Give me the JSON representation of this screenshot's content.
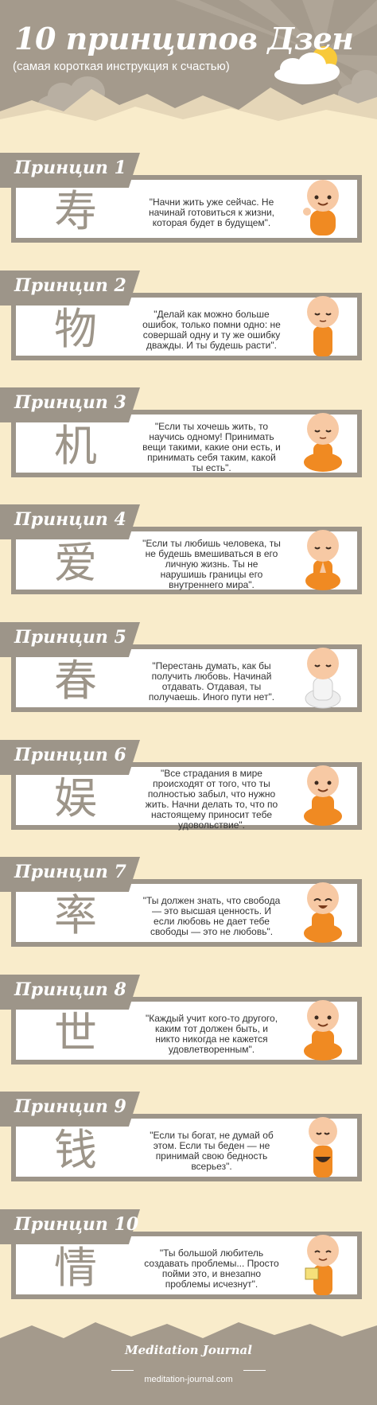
{
  "header": {
    "title": "10 принципов Дзен",
    "subtitle": "(самая короткая инструкция к счастью)"
  },
  "principles": [
    {
      "label": "Принцип 1",
      "glyph": "寿",
      "quote": "\"Начни жить уже сейчас. Не начинай готовиться к жизни, которая будет в будущем\".",
      "monk": "waving"
    },
    {
      "label": "Принцип 2",
      "glyph": "物",
      "quote": "\"Делай как можно больше ошибок, только помни одно: не совершай одну и ту же ошибку дважды. И ты будешь расти\".",
      "monk": "standing"
    },
    {
      "label": "Принцип 3",
      "glyph": "机",
      "quote": "\"Если ты хочешь жить, то научись одному! Принимать вещи такими, какие они есть, и принимать себя таким, какой ты есть\".",
      "monk": "meditating"
    },
    {
      "label": "Принцип 4",
      "glyph": "爱",
      "quote": "\"Если ты любишь человека, ты не будешь вмешиваться в его личную жизнь. Ты не нарушишь границы его внутреннего мира\".",
      "monk": "praying"
    },
    {
      "label": "Принцип 5",
      "glyph": "春",
      "quote": "\"Перестань думать, как бы получить любовь. Начинай отдавать. Отдавая, ты получаешь. Иного пути нет\".",
      "monk": "white-robe"
    },
    {
      "label": "Принцип 6",
      "glyph": "娱",
      "quote": "\"Все страдания в мире происходят от того, что ты полностью забыл, что нужно жить. Начни делать то, что по настоящему приносит тебе удовольствие\".",
      "monk": "smiling"
    },
    {
      "label": "Принцип 7",
      "glyph": "率",
      "quote": "\"Ты должен знать, что свобода — это высшая ценность. И если любовь не дает тебе свободы — это не любовь\".",
      "monk": "laughing"
    },
    {
      "label": "Принцип 8",
      "glyph": "世",
      "quote": "\"Каждый учит кого-то другого, каким тот должен быть, и никто никогда не кажется удовлетворенным\".",
      "monk": "smiling"
    },
    {
      "label": "Принцип 9",
      "glyph": "钱",
      "quote": "\"Если ты богат, не думай об этом. Если ты беден — не принимай свою бедность всерьез\".",
      "monk": "bowl"
    },
    {
      "label": "Принцип 10",
      "glyph": "情",
      "quote": "\"Ты большой любитель создавать проблемы... Просто пойми это, и внезапно проблемы исчезнут\".",
      "monk": "reading"
    }
  ],
  "footer": {
    "brand": "Meditation Journal",
    "site": "meditation-journal.com"
  },
  "colors": {
    "background": "#f9eccb",
    "header": "#a49a8c",
    "banner": "#9d9589",
    "robe": "#f08a22",
    "skin": "#f7c9a4"
  }
}
